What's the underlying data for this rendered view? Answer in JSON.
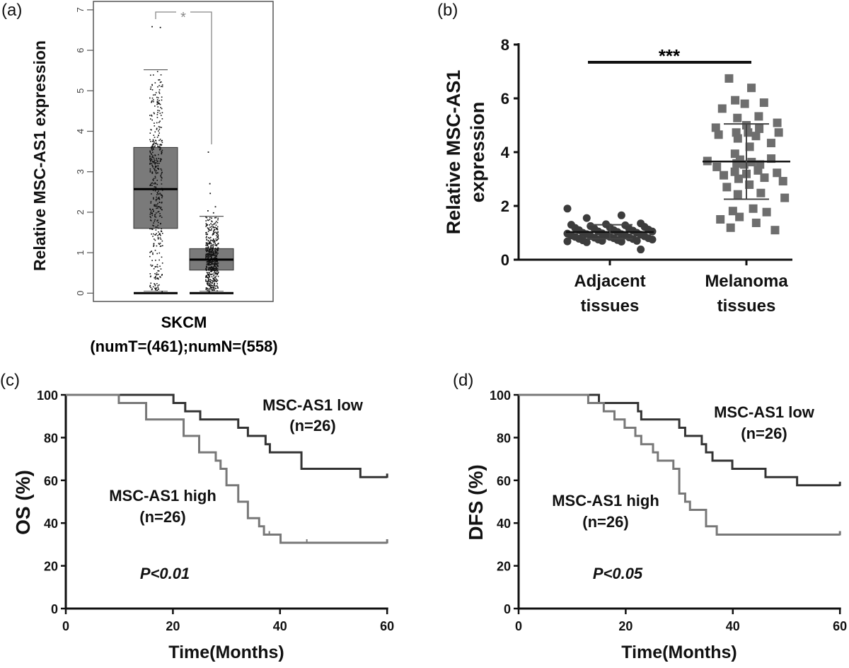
{
  "chart_data": [
    {
      "panel": "(a)",
      "type": "box",
      "ylabel": "Relative MSC-AS1 expression",
      "xlabel": "SKCM",
      "xsublabel": "(numT=(461);numN=(558)",
      "ylim": [
        0,
        7
      ],
      "yticks": [
        "0",
        "1",
        "2",
        "3",
        "4",
        "5",
        "6",
        "7"
      ],
      "significance": "*",
      "colors": {
        "box": "#7a7a7a",
        "points": "#111111",
        "bracket": "#888888"
      },
      "series": [
        {
          "n": 461,
          "median": 2.57,
          "q1": 1.6,
          "q3": 3.6,
          "whisker_low": 0.05,
          "whisker_high": 5.52,
          "outliers": [
            6.6,
            6.58
          ]
        },
        {
          "n": 558,
          "median": 0.83,
          "q1": 0.57,
          "q3": 1.1,
          "whisker_low": 0.05,
          "whisker_high": 1.9,
          "outliers": [
            3.5,
            2.72,
            2.48,
            2.15,
            2.05,
            2.0
          ]
        }
      ]
    },
    {
      "panel": "(b)",
      "type": "scatter",
      "ylabel": [
        "Relative MSC-AS1",
        "expression"
      ],
      "categories": [
        [
          "Adjacent",
          "tissues"
        ],
        [
          "Melanoma",
          "tissues"
        ]
      ],
      "ylim": [
        0,
        8
      ],
      "yticks": [
        "0",
        "2",
        "4",
        "6",
        "8"
      ],
      "significance": "***",
      "colors": {
        "adjacent": "#3c3c3c",
        "melanoma": "#6e6e6e"
      },
      "series": [
        {
          "marker": "circle",
          "mean": 1.03,
          "sd": [
            0.78,
            1.3
          ],
          "values": [
            1.9,
            1.65,
            1.55,
            1.35,
            1.32,
            1.3,
            1.28,
            1.25,
            1.22,
            1.2,
            1.18,
            1.15,
            1.15,
            1.12,
            1.1,
            1.1,
            1.08,
            1.05,
            1.05,
            1.03,
            1.0,
            1.0,
            0.98,
            0.97,
            0.95,
            0.95,
            0.93,
            0.92,
            0.9,
            0.9,
            0.88,
            0.87,
            0.85,
            0.85,
            0.83,
            0.82,
            0.8,
            0.8,
            0.78,
            0.77,
            0.75,
            0.75,
            0.73,
            0.72,
            0.7,
            0.7,
            0.68,
            0.67,
            0.65,
            0.38
          ]
        },
        {
          "marker": "square",
          "mean": 3.65,
          "sd": [
            2.25,
            5.05
          ],
          "values": [
            6.74,
            6.39,
            5.93,
            5.84,
            5.8,
            5.62,
            5.33,
            5.27,
            5.09,
            5.0,
            4.91,
            4.87,
            4.73,
            4.73,
            4.73,
            4.65,
            4.6,
            4.51,
            4.34,
            4.2,
            3.94,
            3.76,
            3.72,
            3.67,
            3.63,
            3.58,
            3.54,
            3.54,
            3.45,
            3.32,
            3.27,
            3.23,
            3.19,
            3.14,
            3.05,
            3.01,
            2.92,
            2.79,
            2.7,
            2.48,
            2.43,
            2.3,
            1.9,
            1.81,
            1.77,
            1.59,
            1.5,
            1.37,
            1.19,
            1.1
          ]
        }
      ]
    },
    {
      "panel": "(c)",
      "type": "line",
      "ylabel": "OS (%)",
      "xlabel": "Time(Months)",
      "xlim": [
        0,
        60
      ],
      "ylim": [
        0,
        100
      ],
      "xticks": [
        "0",
        "20",
        "40",
        "60"
      ],
      "yticks": [
        "0",
        "20",
        "40",
        "60",
        "80",
        "100"
      ],
      "pvalue": "P<0.01",
      "colors": {
        "low": "#333333",
        "high": "#787878"
      },
      "series": [
        {
          "name": "MSC-AS1 low",
          "n_label": "(n=26)",
          "steps": [
            [
              0,
              100
            ],
            [
              20.1,
              96.2
            ],
            [
              22.3,
              92.3
            ],
            [
              25.1,
              88.5
            ],
            [
              32.2,
              84.6
            ],
            [
              34,
              80.8
            ],
            [
              37.3,
              76.9
            ],
            [
              38.1,
              73.1
            ],
            [
              44,
              65.4
            ],
            [
              55,
              61.5
            ],
            [
              60,
              61.5
            ]
          ]
        },
        {
          "name": "MSC-AS1 high",
          "n_label": "(n=26)",
          "steps": [
            [
              0,
              100
            ],
            [
              9.9,
              96.2
            ],
            [
              15,
              88.5
            ],
            [
              22,
              80.8
            ],
            [
              24.9,
              73.1
            ],
            [
              28,
              69.2
            ],
            [
              28.9,
              65.4
            ],
            [
              30,
              57.7
            ],
            [
              32.2,
              50
            ],
            [
              34,
              42.3
            ],
            [
              36.1,
              38.5
            ],
            [
              37,
              34.6
            ],
            [
              40.1,
              30.8
            ],
            [
              60,
              30.8
            ]
          ],
          "censored": [
            38,
            45
          ]
        }
      ]
    },
    {
      "panel": "(d)",
      "type": "line",
      "ylabel": "DFS (%)",
      "xlabel": "Time(Months)",
      "xlim": [
        0,
        60
      ],
      "ylim": [
        0,
        100
      ],
      "xticks": [
        "0",
        "20",
        "40",
        "60"
      ],
      "yticks": [
        "0",
        "20",
        "40",
        "60",
        "80",
        "100"
      ],
      "pvalue": "P<0.05",
      "colors": {
        "low": "#333333",
        "high": "#787878"
      },
      "series": [
        {
          "name": "MSC-AS1 low",
          "n_label": "(n=26)",
          "steps": [
            [
              0,
              100
            ],
            [
              15,
              96.2
            ],
            [
              22.3,
              92.3
            ],
            [
              22.9,
              88.5
            ],
            [
              30,
              84.6
            ],
            [
              31.1,
              80.8
            ],
            [
              34.2,
              76.9
            ],
            [
              35,
              73.1
            ],
            [
              36.2,
              69.2
            ],
            [
              39.9,
              65.4
            ],
            [
              46.1,
              61.5
            ],
            [
              52,
              57.7
            ],
            [
              60,
              57.7
            ]
          ]
        },
        {
          "name": "MSC-AS1 high",
          "n_label": "(n=26)",
          "steps": [
            [
              0,
              100
            ],
            [
              13,
              96.2
            ],
            [
              15.9,
              92.3
            ],
            [
              17.9,
              88.5
            ],
            [
              19.8,
              84.6
            ],
            [
              21.8,
              80.8
            ],
            [
              22.9,
              76.9
            ],
            [
              25.1,
              73.1
            ],
            [
              26,
              69.2
            ],
            [
              28.9,
              65.4
            ],
            [
              30,
              53.8
            ],
            [
              31.1,
              50
            ],
            [
              32,
              46.2
            ],
            [
              35,
              38.5
            ],
            [
              37,
              34.6
            ],
            [
              60,
              34.6
            ]
          ]
        }
      ]
    }
  ]
}
